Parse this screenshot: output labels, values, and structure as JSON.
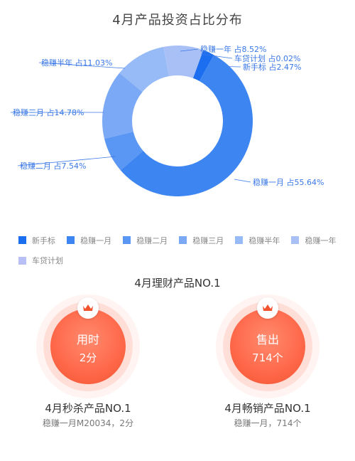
{
  "page": {
    "title": "4月产品投资占比分布"
  },
  "colors": {
    "新手标": "#1b6ef0",
    "稳赚一月": "#3d86f2",
    "稳赚二月": "#5a96f3",
    "稳赚三月": "#7ba9f6",
    "稳赚半年": "#97bbf7",
    "稳赚一年": "#a9c0f7",
    "车贷计划": "#b8bff7",
    "badge": "#ff6a4c",
    "label": "#3a78e6"
  },
  "chart_data": {
    "type": "pie",
    "donut": true,
    "title": "4月产品投资占比分布",
    "slices": [
      {
        "name": "新手标",
        "value": 2.47,
        "label": "新手标 占2.47%"
      },
      {
        "name": "稳赚一月",
        "value": 55.64,
        "label": "稳赚一月 占55.64%"
      },
      {
        "name": "稳赚二月",
        "value": 7.54,
        "label": "稳赚二月 占7.54%"
      },
      {
        "name": "稳赚三月",
        "value": 14.78,
        "label": "稳赚三月 占14.78%"
      },
      {
        "name": "稳赚半年",
        "value": 11.03,
        "label": "稳赚半年 占11.03%"
      },
      {
        "name": "稳赚一年",
        "value": 8.52,
        "label": "稳赚一年 占8.52%"
      },
      {
        "name": "车贷计划",
        "value": 0.02,
        "label": "车贷计划 占0.02%"
      }
    ],
    "legend": [
      "新手标",
      "稳赚一月",
      "稳赚二月",
      "稳赚三月",
      "稳赚半年",
      "稳赚一年",
      "车贷计划"
    ],
    "legend_position": "bottom"
  },
  "section": {
    "title": "4月理财产品NO.1"
  },
  "cards": [
    {
      "icon": "crown-icon",
      "badge_line1": "用时",
      "badge_line2": "2分",
      "title": "4月秒杀产品NO.1",
      "subtitle": "稳赚一月M20034，2分"
    },
    {
      "icon": "crown-icon",
      "badge_line1": "售出",
      "badge_line2": "714个",
      "title": "4月畅销产品NO.1",
      "subtitle": "稳赚一月，714个"
    }
  ]
}
